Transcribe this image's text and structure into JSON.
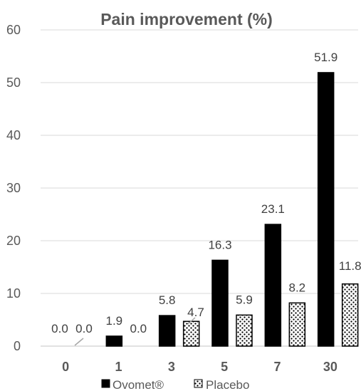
{
  "chart_data": {
    "type": "bar",
    "title": "Pain improvement (%)",
    "xlabel": "",
    "ylabel": "",
    "categories": [
      "0",
      "1",
      "3",
      "5",
      "7",
      "30"
    ],
    "series": [
      {
        "name": "Ovomet®",
        "values": [
          0.0,
          1.9,
          5.8,
          16.3,
          23.1,
          51.9
        ],
        "labels": [
          "0.0",
          "1.9",
          "5.8",
          "16.3",
          "23.1",
          "51.9"
        ],
        "fill": "#000000"
      },
      {
        "name": "Placebo",
        "values": [
          0.0,
          0.0,
          4.7,
          5.9,
          8.2,
          11.8
        ],
        "labels": [
          "0.0",
          "0.0",
          "4.7",
          "5.9",
          "8.2",
          "11.8"
        ],
        "fill": "dotted-pattern"
      }
    ],
    "ylim": [
      0,
      60
    ],
    "yticks": [
      "0",
      "10",
      "20",
      "30",
      "40",
      "50",
      "60"
    ],
    "grid": true,
    "legend_position": "bottom",
    "colors": {
      "title": "#595959",
      "axis_text": "#595959",
      "data_label": "#404040",
      "gridline": "#d9d9d9",
      "ovomet": "#000000",
      "placebo_background": "#ffffff",
      "placebo_pattern": "#000000",
      "leader_line": "#a6a6a6"
    }
  }
}
